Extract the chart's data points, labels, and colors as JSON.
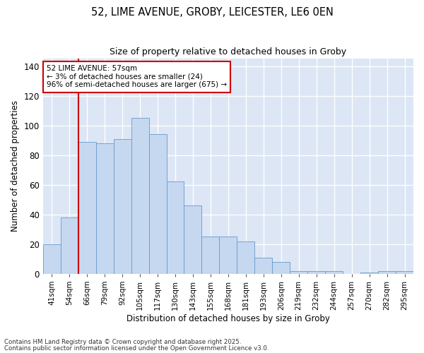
{
  "title1": "52, LIME AVENUE, GROBY, LEICESTER, LE6 0EN",
  "title2": "Size of property relative to detached houses in Groby",
  "xlabel": "Distribution of detached houses by size in Groby",
  "ylabel": "Number of detached properties",
  "categories": [
    "41sqm",
    "54sqm",
    "66sqm",
    "79sqm",
    "92sqm",
    "105sqm",
    "117sqm",
    "130sqm",
    "143sqm",
    "155sqm",
    "168sqm",
    "181sqm",
    "193sqm",
    "206sqm",
    "219sqm",
    "232sqm",
    "244sqm",
    "257sqm",
    "270sqm",
    "282sqm",
    "295sqm"
  ],
  "values": [
    20,
    38,
    89,
    88,
    91,
    105,
    94,
    62,
    46,
    25,
    25,
    22,
    11,
    8,
    2,
    2,
    2,
    0,
    1,
    2,
    2
  ],
  "bar_color": "#c5d8f0",
  "bar_edge_color": "#6699cc",
  "vline_x": 1.5,
  "vline_color": "#cc0000",
  "annotation_lines": [
    "52 LIME AVENUE: 57sqm",
    "← 3% of detached houses are smaller (24)",
    "96% of semi-detached houses are larger (675) →"
  ],
  "annotation_box_color": "#cc0000",
  "ylim": [
    0,
    145
  ],
  "ylim_display": [
    0,
    140
  ],
  "yticks": [
    0,
    20,
    40,
    60,
    80,
    100,
    120,
    140
  ],
  "background_color": "#dce6f5",
  "fig_background": "#ffffff",
  "footer1": "Contains HM Land Registry data © Crown copyright and database right 2025.",
  "footer2": "Contains public sector information licensed under the Open Government Licence v3.0."
}
